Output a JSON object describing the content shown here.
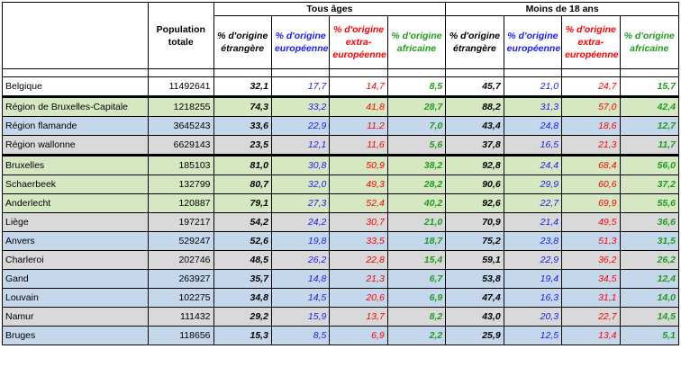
{
  "header": {
    "population_label": "Population totale",
    "group_all": "Tous âges",
    "group_minors": "Moins de 18 ans",
    "col_foreign": "% d'origine étrangère",
    "col_european": "% d'origine européenne",
    "col_non_european": "% d'origine extra-européenne",
    "col_african": "% d'origine africaine"
  },
  "colors": {
    "green_row": "#d6e8c2",
    "blue_row": "#c5d7ea",
    "grey_row": "#d9d9d9",
    "european_text": "#1a1aff",
    "non_european_text": "#ff0000",
    "african_text": "#1f9c1f"
  },
  "rows": [
    {
      "name": "Belgique",
      "pop": "11492641",
      "a1": "32,1",
      "a2": "17,7",
      "a3": "14,7",
      "a4": "8,5",
      "m1": "45,7",
      "m2": "21,0",
      "m3": "24,7",
      "m4": "15,7"
    },
    {
      "name": "Région de Bruxelles-Capitale",
      "pop": "1218255",
      "a1": "74,3",
      "a2": "33,2",
      "a3": "41,8",
      "a4": "28,7",
      "m1": "88,2",
      "m2": "31,3",
      "m3": "57,0",
      "m4": "42,4"
    },
    {
      "name": "Région flamande",
      "pop": "3645243",
      "a1": "33,6",
      "a2": "22,9",
      "a3": "11,2",
      "a4": "7,0",
      "m1": "43,4",
      "m2": "24,8",
      "m3": "18,6",
      "m4": "12,7"
    },
    {
      "name": "Région wallonne",
      "pop": "6629143",
      "a1": "23,5",
      "a2": "12,1",
      "a3": "11,6",
      "a4": "5,6",
      "m1": "37,8",
      "m2": "16,5",
      "m3": "21,3",
      "m4": "11,7"
    },
    {
      "name": "Bruxelles",
      "pop": "185103",
      "a1": "81,0",
      "a2": "30,8",
      "a3": "50,9",
      "a4": "38,2",
      "m1": "92,8",
      "m2": "24,4",
      "m3": "68,4",
      "m4": "56,0"
    },
    {
      "name": "Schaerbeek",
      "pop": "132799",
      "a1": "80,7",
      "a2": "32,0",
      "a3": "49,3",
      "a4": "28,2",
      "m1": "90,6",
      "m2": "29,9",
      "m3": "60,6",
      "m4": "37,2"
    },
    {
      "name": "Anderlecht",
      "pop": "120887",
      "a1": "79,1",
      "a2": "27,3",
      "a3": "52,4",
      "a4": "40,2",
      "m1": "92,6",
      "m2": "22,7",
      "m3": "69,9",
      "m4": "55,6"
    },
    {
      "name": "Liège",
      "pop": "197217",
      "a1": "54,2",
      "a2": "24,2",
      "a3": "30,7",
      "a4": "21,0",
      "m1": "70,9",
      "m2": "21,4",
      "m3": "49,5",
      "m4": "36,6"
    },
    {
      "name": "Anvers",
      "pop": "529247",
      "a1": "52,6",
      "a2": "19,8",
      "a3": "33,5",
      "a4": "18,7",
      "m1": "75,2",
      "m2": "23,8",
      "m3": "51,3",
      "m4": "31,5"
    },
    {
      "name": "Charleroi",
      "pop": "202746",
      "a1": "48,5",
      "a2": "26,2",
      "a3": "22,8",
      "a4": "15,4",
      "m1": "59,1",
      "m2": "22,9",
      "m3": "36,2",
      "m4": "26,2"
    },
    {
      "name": "Gand",
      "pop": "263927",
      "a1": "35,7",
      "a2": "14,8",
      "a3": "21,3",
      "a4": "6,7",
      "m1": "53,8",
      "m2": "19,4",
      "m3": "34,5",
      "m4": "12,4"
    },
    {
      "name": "Louvain",
      "pop": "102275",
      "a1": "34,8",
      "a2": "14,5",
      "a3": "20,6",
      "a4": "6,9",
      "m1": "47,4",
      "m2": "16,3",
      "m3": "31,1",
      "m4": "14,0"
    },
    {
      "name": "Namur",
      "pop": "111432",
      "a1": "29,2",
      "a2": "15,9",
      "a3": "13,7",
      "a4": "8,2",
      "m1": "43,0",
      "m2": "20,3",
      "m3": "22,7",
      "m4": "14,5"
    },
    {
      "name": "Bruges",
      "pop": "118656",
      "a1": "15,3",
      "a2": "8,5",
      "a3": "6,9",
      "a4": "2,2",
      "m1": "25,9",
      "m2": "12,5",
      "m3": "13,4",
      "m4": "5,1"
    }
  ]
}
